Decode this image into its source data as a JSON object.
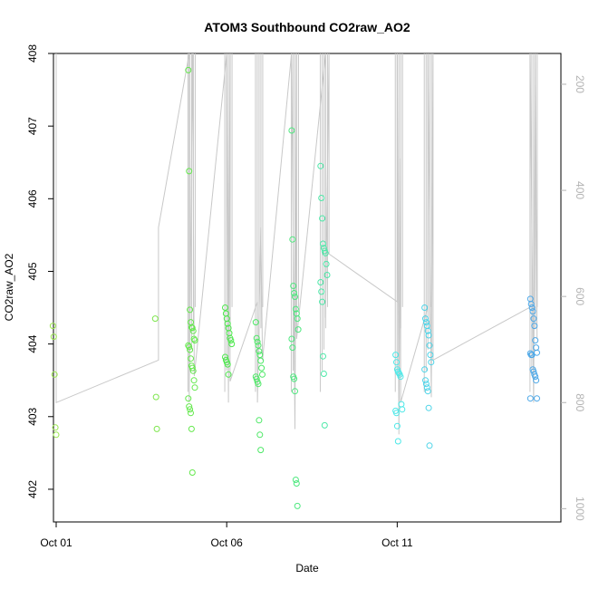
{
  "chart_data": {
    "type": "scatter",
    "title": "ATOM3 Southbound CO2raw_AO2",
    "xlabel": "Date",
    "ylabel": "CO2raw_AO2",
    "x_ticks": [
      {
        "label": "Oct 01",
        "day": 1
      },
      {
        "label": "Oct 06",
        "day": 6
      },
      {
        "label": "Oct 11",
        "day": 11
      }
    ],
    "xlim": [
      0.92,
      15.8
    ],
    "ylim": [
      401.55,
      408.0
    ],
    "y_ticks": [
      402,
      403,
      404,
      405,
      406,
      407,
      408
    ],
    "y2_ticks": [
      200,
      400,
      600,
      800,
      1000
    ],
    "y2lim": [
      1025,
      142
    ],
    "y2_color": "#b3b3b3",
    "profile_color": "#c8c8c8",
    "clusters": [
      {
        "day": 1.0,
        "color": "#99e64d",
        "points": [
          404.25,
          404.1,
          403.58,
          402.85,
          402.75
        ]
      },
      {
        "day": 4.0,
        "color": "#7ee64d",
        "points": [
          404.35,
          403.27,
          402.83
        ]
      },
      {
        "day": 4.97,
        "color": "#64e84d",
        "points": [
          407.77,
          406.38,
          404.47,
          404.3,
          404.23,
          404.22,
          404.18,
          404.07,
          404.05,
          403.98,
          403.96,
          403.92,
          403.8,
          403.7,
          403.67,
          403.63,
          403.5,
          403.4,
          403.25,
          403.14,
          403.1,
          403.05,
          402.83,
          402.23
        ]
      },
      {
        "day": 6.05,
        "color": "#4de84d",
        "points": [
          404.5,
          404.42,
          404.35,
          404.28,
          404.22,
          404.15,
          404.08,
          404.05,
          404.0,
          403.82,
          403.78,
          403.75,
          403.72,
          403.58
        ]
      },
      {
        "day": 6.95,
        "color": "#4de866",
        "points": [
          404.3,
          404.08,
          404.03,
          403.98,
          403.9,
          403.85,
          403.77,
          403.67,
          403.58,
          403.55,
          403.52,
          403.48,
          403.45,
          402.95,
          402.75,
          402.54
        ]
      },
      {
        "day": 8.0,
        "color": "#4de87e",
        "points": [
          406.94,
          405.44,
          404.8,
          404.7,
          404.65,
          404.48,
          404.42,
          404.35,
          404.2,
          404.07,
          403.95,
          403.55,
          403.52,
          403.35,
          402.13,
          402.08,
          401.77
        ]
      },
      {
        "day": 8.85,
        "color": "#4de8a8",
        "points": [
          406.45,
          406.01,
          405.73,
          405.38,
          405.32,
          405.28,
          405.25,
          405.1,
          404.95,
          404.85,
          404.72,
          404.58,
          403.83,
          403.59,
          402.88
        ]
      },
      {
        "day": 11.05,
        "color": "#4de8e8",
        "points": [
          403.85,
          403.75,
          403.65,
          403.62,
          403.6,
          403.58,
          403.55,
          403.17,
          403.1,
          403.08,
          403.05,
          402.87,
          402.66
        ]
      },
      {
        "day": 11.9,
        "color": "#4dd4e8",
        "points": [
          404.5,
          404.35,
          404.3,
          404.25,
          404.18,
          404.12,
          403.98,
          403.85,
          403.75,
          403.65,
          403.5,
          403.45,
          403.4,
          403.35,
          403.12,
          402.6
        ]
      },
      {
        "day": 15.0,
        "color": "#4da8e8",
        "points": [
          404.62,
          404.55,
          404.5,
          404.45,
          404.35,
          404.25,
          404.05,
          403.95,
          403.88,
          403.87,
          403.85,
          403.85,
          403.65,
          403.62,
          403.58,
          403.55,
          403.5,
          403.25,
          403.25
        ]
      }
    ],
    "profile_path": [
      [
        1.0,
        800
      ],
      [
        1.0,
        142
      ],
      [
        1.0,
        800
      ],
      [
        4.0,
        720
      ],
      [
        4.0,
        470
      ],
      [
        4.9,
        142
      ],
      [
        4.9,
        800
      ],
      [
        5.0,
        142
      ],
      [
        5.05,
        750
      ],
      [
        6.0,
        142
      ],
      [
        6.05,
        800
      ],
      [
        6.1,
        142
      ],
      [
        6.1,
        760
      ],
      [
        6.9,
        610
      ],
      [
        6.9,
        800
      ],
      [
        7.0,
        470
      ],
      [
        7.05,
        720
      ],
      [
        7.9,
        142
      ],
      [
        8.0,
        850
      ],
      [
        8.05,
        142
      ],
      [
        8.05,
        680
      ],
      [
        8.9,
        142
      ],
      [
        8.9,
        640
      ],
      [
        9.0,
        142
      ],
      [
        9.0,
        520
      ],
      [
        11.0,
        610
      ],
      [
        11.0,
        142
      ],
      [
        11.05,
        860
      ],
      [
        11.1,
        340
      ],
      [
        11.1,
        800
      ],
      [
        11.9,
        620
      ],
      [
        11.9,
        142
      ],
      [
        12.0,
        790
      ],
      [
        12.05,
        142
      ],
      [
        12.05,
        720
      ],
      [
        14.9,
        620
      ],
      [
        14.9,
        142
      ],
      [
        15.0,
        800
      ],
      [
        15.05,
        142
      ],
      [
        15.1,
        680
      ]
    ]
  }
}
